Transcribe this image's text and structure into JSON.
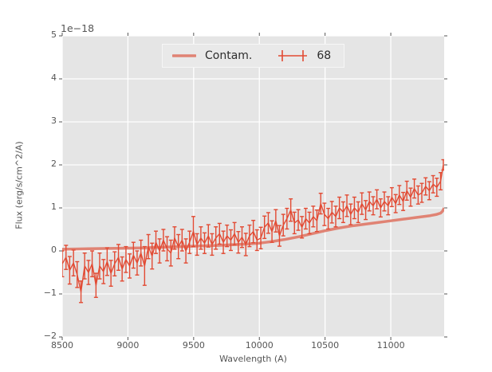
{
  "chart_data": {
    "type": "line",
    "title": "",
    "xlabel": "Wavelength (A)",
    "ylabel": "Flux (erg/s/cm^2/A)",
    "offset_text": "1e−18",
    "xlim": [
      8500,
      11406
    ],
    "ylim": [
      -2,
      5
    ],
    "xticks": [
      8500,
      9000,
      9500,
      10000,
      10500,
      11000
    ],
    "xtick_labels": [
      "8500",
      "9000",
      "9500",
      "10000",
      "10500",
      "11000"
    ],
    "yticks": [
      -2,
      -1,
      0,
      1,
      2,
      3,
      4,
      5
    ],
    "ytick_labels": [
      "−2",
      "−1",
      "0",
      "1",
      "2",
      "3",
      "4",
      "5"
    ],
    "grid": true,
    "legend_position": "upper center",
    "colors": {
      "figure_bg": "#ffffff",
      "plot_bg": "#e5e5e5",
      "grid": "#ffffff",
      "tick": "#555555",
      "text": "#555555",
      "legend_text": "#2e2e2e",
      "legend_bg": "#e9e9e9",
      "legend_border": "#f6f6f6",
      "contam": "#e08374",
      "series": "#e24a33"
    },
    "legend": {
      "items": [
        {
          "label": "Contam.",
          "handle": "line"
        },
        {
          "label": "68",
          "handle": "errorbar"
        }
      ]
    },
    "series": [
      {
        "name": "Contam.",
        "type": "line",
        "x": [
          8500,
          8600,
          8700,
          8800,
          8900,
          9000,
          9100,
          9200,
          9300,
          9400,
          9500,
          9600,
          9700,
          9800,
          9900,
          10000,
          10050,
          10100,
          10150,
          10200,
          10250,
          10300,
          10350,
          10400,
          10450,
          10500,
          10550,
          10600,
          10650,
          10700,
          10750,
          10800,
          10900,
          11000,
          11100,
          11200,
          11300,
          11350,
          11380,
          11395,
          11406
        ],
        "y": [
          0.04,
          0.045,
          0.05,
          0.055,
          0.06,
          0.065,
          0.07,
          0.08,
          0.09,
          0.1,
          0.11,
          0.12,
          0.13,
          0.145,
          0.16,
          0.18,
          0.2,
          0.22,
          0.245,
          0.27,
          0.3,
          0.33,
          0.365,
          0.4,
          0.435,
          0.47,
          0.5,
          0.53,
          0.555,
          0.58,
          0.6,
          0.62,
          0.66,
          0.7,
          0.74,
          0.78,
          0.82,
          0.85,
          0.88,
          0.93,
          1.0
        ]
      },
      {
        "name": "68",
        "type": "errorbar",
        "x": [
          8500,
          8529,
          8557,
          8586,
          8614,
          8643,
          8671,
          8700,
          8728,
          8757,
          8785,
          8814,
          8842,
          8871,
          8899,
          8928,
          8956,
          8985,
          9013,
          9042,
          9070,
          9099,
          9127,
          9156,
          9184,
          9213,
          9241,
          9270,
          9298,
          9327,
          9355,
          9384,
          9412,
          9441,
          9469,
          9498,
          9526,
          9555,
          9583,
          9612,
          9640,
          9669,
          9697,
          9726,
          9754,
          9783,
          9811,
          9840,
          9868,
          9897,
          9925,
          9954,
          9982,
          10011,
          10039,
          10068,
          10096,
          10125,
          10153,
          10182,
          10210,
          10239,
          10267,
          10296,
          10324,
          10353,
          10381,
          10410,
          10438,
          10467,
          10495,
          10524,
          10552,
          10581,
          10609,
          10638,
          10666,
          10695,
          10723,
          10752,
          10780,
          10809,
          10837,
          10866,
          10894,
          10923,
          10951,
          10980,
          11008,
          11037,
          11065,
          11094,
          11122,
          11151,
          11179,
          11208,
          11236,
          11265,
          11293,
          11322,
          11350,
          11379,
          11400
        ],
        "y": [
          -0.3,
          -0.15,
          -0.45,
          -0.28,
          -0.55,
          -0.95,
          -0.35,
          -0.5,
          -0.3,
          -0.8,
          -0.35,
          -0.48,
          -0.25,
          -0.52,
          -0.3,
          -0.15,
          -0.42,
          -0.2,
          -0.35,
          -0.1,
          -0.28,
          -0.05,
          -0.35,
          0.1,
          -0.12,
          0.2,
          0.0,
          0.25,
          0.05,
          -0.05,
          0.3,
          0.1,
          0.25,
          0.0,
          0.2,
          0.45,
          0.15,
          0.3,
          0.18,
          0.35,
          0.15,
          0.3,
          0.4,
          0.2,
          0.35,
          0.25,
          0.4,
          0.2,
          0.32,
          0.15,
          0.35,
          0.45,
          0.25,
          0.3,
          0.55,
          0.65,
          0.45,
          0.7,
          0.35,
          0.6,
          0.75,
          0.95,
          0.65,
          0.72,
          0.55,
          0.75,
          0.65,
          0.8,
          0.7,
          1.1,
          0.85,
          0.75,
          0.9,
          0.8,
          1.0,
          0.9,
          1.05,
          0.85,
          1.0,
          0.9,
          1.1,
          0.95,
          1.15,
          1.05,
          1.2,
          1.0,
          1.15,
          1.05,
          1.25,
          1.1,
          1.3,
          1.15,
          1.4,
          1.25,
          1.45,
          1.3,
          1.35,
          1.5,
          1.4,
          1.55,
          1.48,
          1.62,
          2.0
        ],
        "yerr": [
          0.3,
          0.28,
          0.32,
          0.3,
          0.3,
          0.25,
          0.3,
          0.28,
          0.3,
          0.28,
          0.3,
          0.28,
          0.32,
          0.3,
          0.28,
          0.3,
          0.28,
          0.3,
          0.28,
          0.3,
          0.28,
          0.3,
          0.45,
          0.28,
          0.3,
          0.26,
          0.28,
          0.25,
          0.28,
          0.3,
          0.26,
          0.28,
          0.25,
          0.28,
          0.26,
          0.35,
          0.25,
          0.26,
          0.24,
          0.26,
          0.25,
          0.26,
          0.24,
          0.26,
          0.25,
          0.24,
          0.26,
          0.25,
          0.24,
          0.26,
          0.25,
          0.26,
          0.24,
          0.25,
          0.26,
          0.24,
          0.25,
          0.26,
          0.24,
          0.25,
          0.24,
          0.26,
          0.25,
          0.24,
          0.25,
          0.24,
          0.25,
          0.24,
          0.25,
          0.24,
          0.26,
          0.24,
          0.25,
          0.24,
          0.25,
          0.24,
          0.25,
          0.24,
          0.25,
          0.24,
          0.25,
          0.22,
          0.22,
          0.21,
          0.22,
          0.21,
          0.22,
          0.21,
          0.22,
          0.21,
          0.22,
          0.21,
          0.22,
          0.21,
          0.22,
          0.21,
          0.22,
          0.2,
          0.21,
          0.2,
          0.21,
          0.2,
          0.12
        ]
      }
    ]
  }
}
